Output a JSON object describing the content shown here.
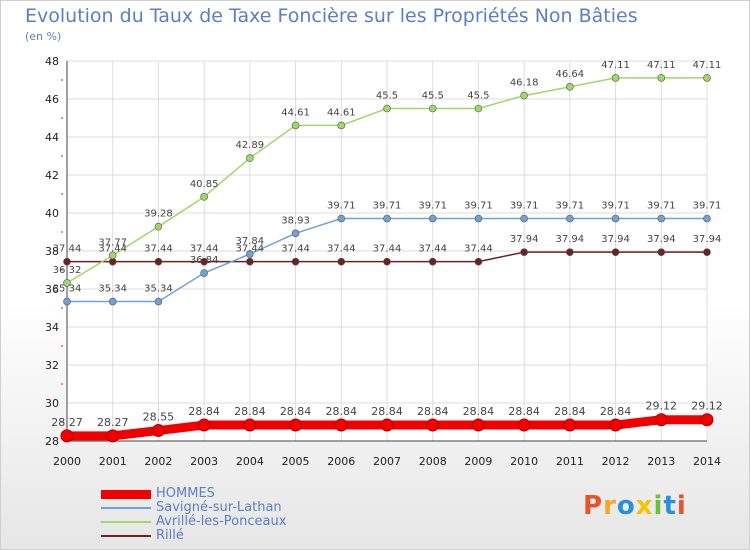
{
  "title": "Evolution du Taux de Taxe Foncière sur les Propriétés Non Bâties",
  "subtitle": "(en %)",
  "logo": {
    "text": "Proxiti",
    "colors": [
      "#e8532b",
      "#f5a623",
      "#2a8fd6",
      "#f5c300",
      "#6cbf3f",
      "#2a8fd6",
      "#e8532b"
    ]
  },
  "chart_data": {
    "type": "line",
    "x": [
      2000,
      2001,
      2002,
      2003,
      2004,
      2005,
      2006,
      2007,
      2008,
      2009,
      2010,
      2011,
      2012,
      2013,
      2014
    ],
    "xlabel": "",
    "ylabel": "",
    "ylim": [
      28,
      48
    ],
    "yticks": [
      28,
      30,
      32,
      34,
      36,
      38,
      40,
      42,
      44,
      46,
      48
    ],
    "grid": true,
    "legend_position": "bottom-left",
    "series": [
      {
        "name": "HOMMES",
        "color": "#f20000",
        "values": [
          28.27,
          28.27,
          28.55,
          28.84,
          28.84,
          28.84,
          28.84,
          28.84,
          28.84,
          28.84,
          28.84,
          28.84,
          28.84,
          29.12,
          29.12
        ]
      },
      {
        "name": "Savigné-sur-Lathan",
        "color": "#6fa3d6",
        "values": [
          35.34,
          35.34,
          35.34,
          36.84,
          37.84,
          38.93,
          39.71,
          39.71,
          39.71,
          39.71,
          39.71,
          39.71,
          39.71,
          39.71,
          39.71
        ]
      },
      {
        "name": "Avrillé-les-Ponceaux",
        "color": "#9ed86a",
        "values": [
          36.32,
          37.77,
          39.28,
          40.85,
          42.89,
          44.61,
          44.61,
          45.5,
          45.5,
          45.5,
          46.18,
          46.64,
          47.11,
          47.11,
          47.11
        ]
      },
      {
        "name": "Rillé",
        "color": "#6b2222",
        "values": [
          37.44,
          37.44,
          37.44,
          37.44,
          37.44,
          37.44,
          37.44,
          37.44,
          37.44,
          37.44,
          37.94,
          37.94,
          37.94,
          37.94,
          37.94
        ]
      }
    ]
  }
}
